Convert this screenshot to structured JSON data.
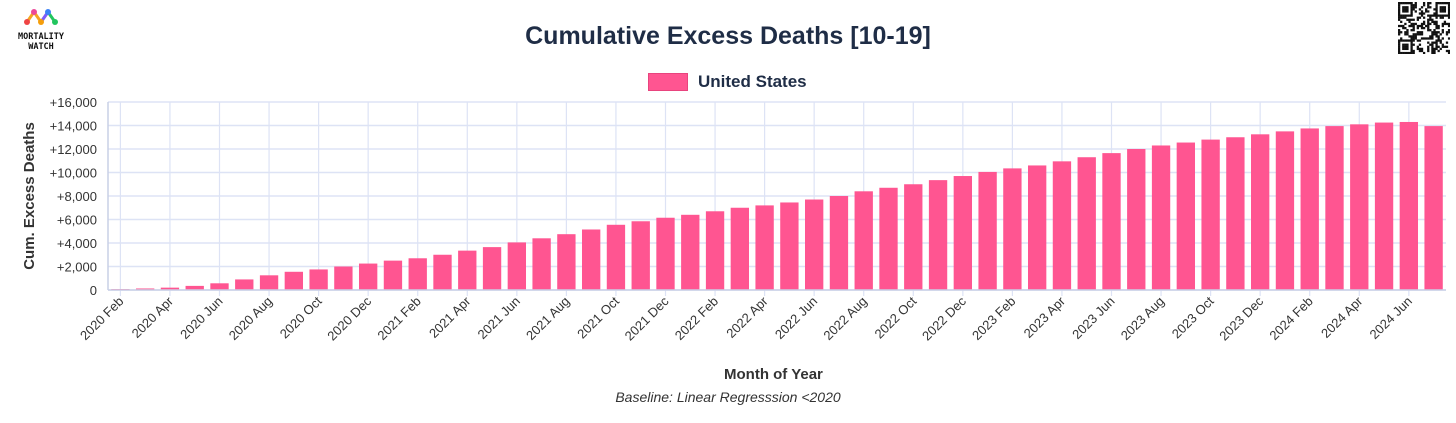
{
  "header": {
    "logo_text_line1": "MORTALITY",
    "logo_text_line2": "WATCH"
  },
  "colors": {
    "bar": "#ff5591",
    "grid": "#dde3f5",
    "axis_text": "#333333"
  },
  "chart_data": {
    "type": "bar",
    "title": "Cumulative Excess Deaths [10-19]",
    "subtitle": "Baseline: Linear Regresssion <2020",
    "xlabel": "Month of Year",
    "ylabel": "Cum. Excess Deaths",
    "ylim": [
      0,
      16000
    ],
    "yticks": [
      "0",
      "+2,000",
      "+4,000",
      "+6,000",
      "+8,000",
      "+10,000",
      "+12,000",
      "+14,000",
      "+16,000"
    ],
    "xtick_labels": [
      "2020 Feb",
      "2020 Apr",
      "2020 Jun",
      "2020 Aug",
      "2020 Oct",
      "2020 Dec",
      "2021 Feb",
      "2021 Apr",
      "2021 Jun",
      "2021 Aug",
      "2021 Oct",
      "2021 Dec",
      "2022 Feb",
      "2022 Apr",
      "2022 Jun",
      "2022 Aug",
      "2022 Oct",
      "2022 Dec",
      "2023 Feb",
      "2023 Apr",
      "2023 Jun",
      "2023 Aug",
      "2023 Oct",
      "2023 Dec",
      "2024 Feb",
      "2024 Apr",
      "2024 Jun"
    ],
    "grid": true,
    "legend": "top-center",
    "categories": [
      "2020 Feb",
      "2020 Mar",
      "2020 Apr",
      "2020 May",
      "2020 Jun",
      "2020 Jul",
      "2020 Aug",
      "2020 Sep",
      "2020 Oct",
      "2020 Nov",
      "2020 Dec",
      "2021 Jan",
      "2021 Feb",
      "2021 Mar",
      "2021 Apr",
      "2021 May",
      "2021 Jun",
      "2021 Jul",
      "2021 Aug",
      "2021 Sep",
      "2021 Oct",
      "2021 Nov",
      "2021 Dec",
      "2022 Jan",
      "2022 Feb",
      "2022 Mar",
      "2022 Apr",
      "2022 May",
      "2022 Jun",
      "2022 Jul",
      "2022 Aug",
      "2022 Sep",
      "2022 Oct",
      "2022 Nov",
      "2022 Dec",
      "2023 Jan",
      "2023 Feb",
      "2023 Mar",
      "2023 Apr",
      "2023 May",
      "2023 Jun",
      "2023 Jul",
      "2023 Aug",
      "2023 Sep",
      "2023 Oct",
      "2023 Nov",
      "2023 Dec",
      "2024 Jan",
      "2024 Feb",
      "2024 Mar",
      "2024 Apr",
      "2024 May",
      "2024 Jun",
      "2024 Jul"
    ],
    "series": [
      {
        "name": "United States",
        "values": [
          80,
          130,
          200,
          350,
          570,
          900,
          1250,
          1550,
          1750,
          2000,
          2250,
          2500,
          2700,
          3000,
          3350,
          3650,
          4050,
          4400,
          4750,
          5150,
          5550,
          5850,
          6150,
          6400,
          6700,
          7000,
          7200,
          7450,
          7700,
          8000,
          8400,
          8700,
          9000,
          9350,
          9700,
          10050,
          10350,
          10600,
          10950,
          11300,
          11650,
          12000,
          12300,
          12550,
          12800,
          13000,
          13250,
          13500,
          13750,
          13950,
          14100,
          14250,
          14300,
          13950
        ]
      }
    ]
  }
}
